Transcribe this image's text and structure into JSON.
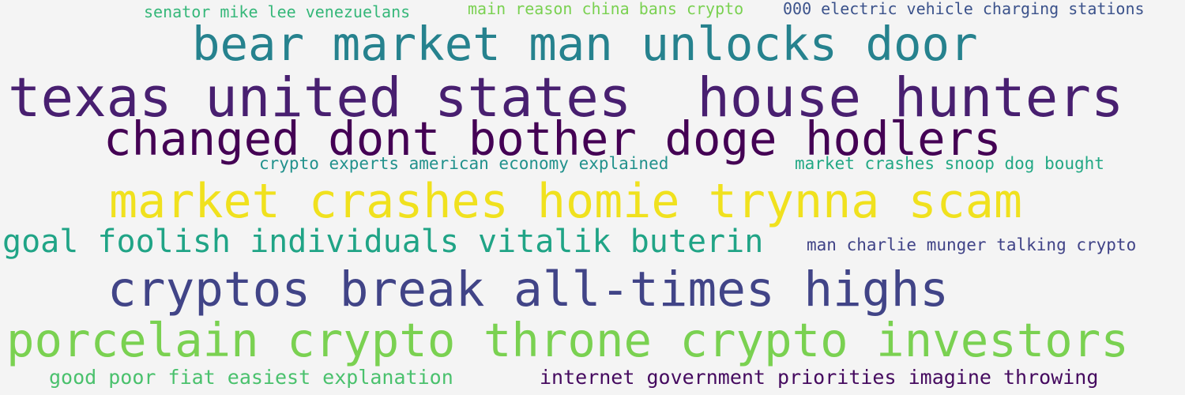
{
  "word_cloud": {
    "background": "#f4f4f4",
    "phrases": [
      {
        "text": "senator mike lee venezuelans",
        "color": "#35b779"
      },
      {
        "text": "main reason china bans crypto",
        "color": "#7ad151"
      },
      {
        "text": "000 electric vehicle charging stations",
        "color": "#3b528b"
      },
      {
        "text": "bear market man unlocks door",
        "color": "#26828e"
      },
      {
        "text": "texas united states  house hunters",
        "color": "#481f70"
      },
      {
        "text": "changed dont bother doge hodlers",
        "color": "#440154"
      },
      {
        "text": "crypto experts american economy explained",
        "color": "#21918c"
      },
      {
        "text": "market crashes snoop dog bought",
        "color": "#22a884"
      },
      {
        "text": "market crashes homie trynna scam",
        "color": "#f0e11e"
      },
      {
        "text": "goal foolish individuals vitalik buterin",
        "color": "#20a486"
      },
      {
        "text": "man charlie munger talking crypto",
        "color": "#404387"
      },
      {
        "text": "cryptos break all-times highs",
        "color": "#414487"
      },
      {
        "text": "porcelain crypto throne crypto investors",
        "color": "#7ad151"
      },
      {
        "text": "good poor fiat easiest explanation",
        "color": "#4ac16d"
      },
      {
        "text": "internet government priorities imagine throwing",
        "color": "#450a5f"
      }
    ]
  }
}
